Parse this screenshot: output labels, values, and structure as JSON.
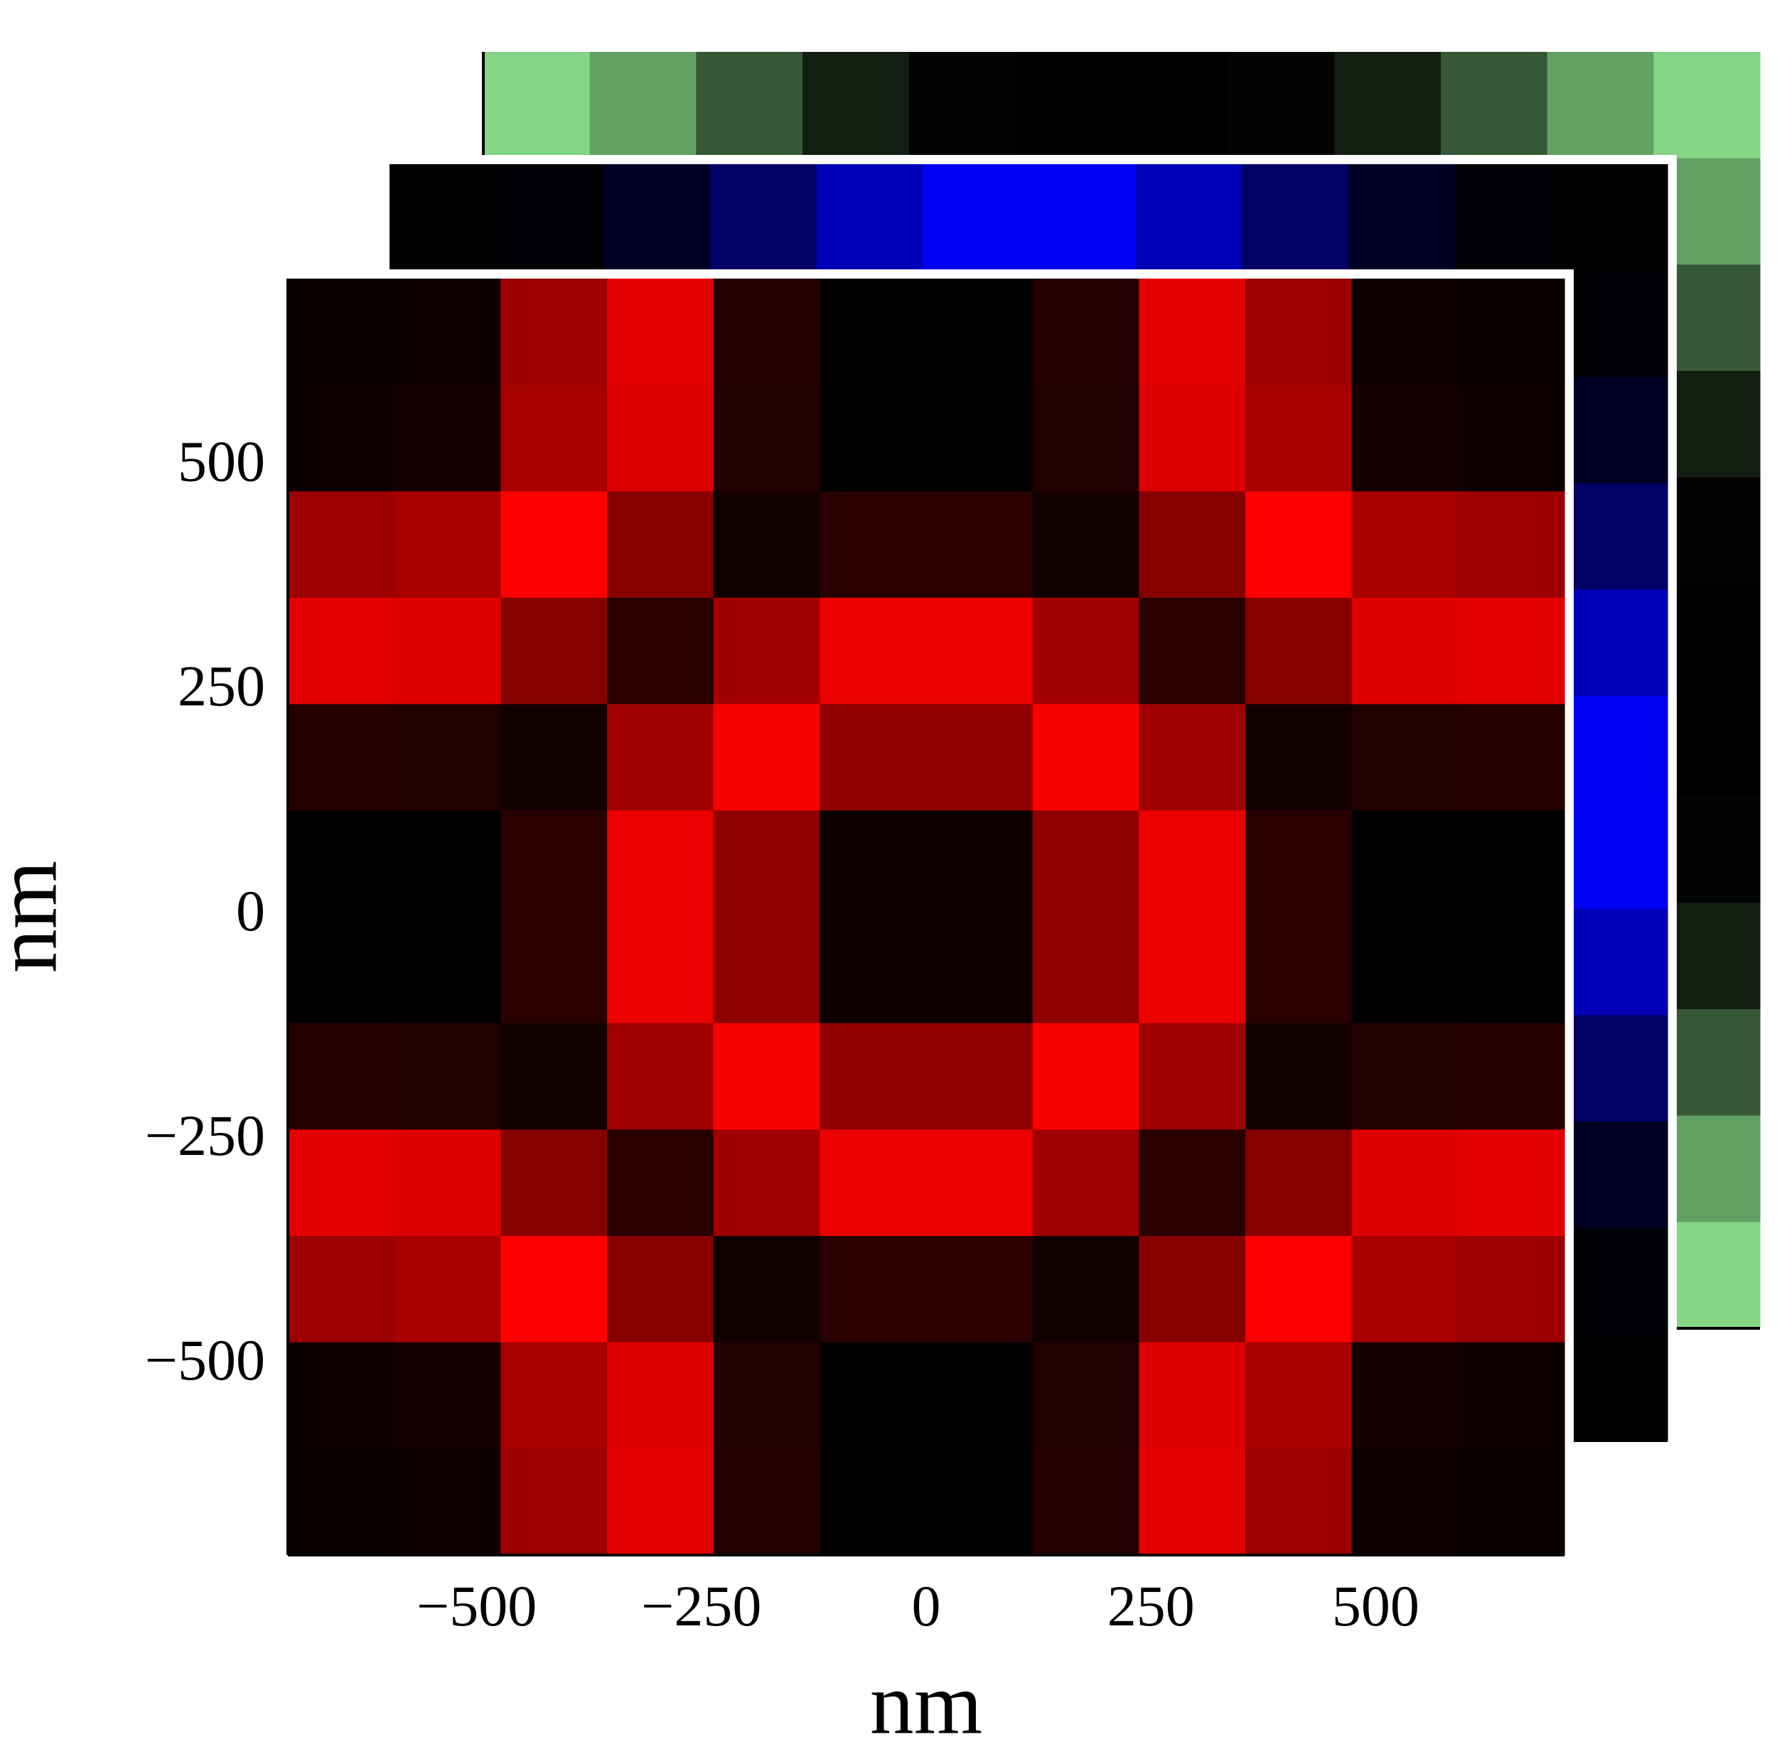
{
  "chart_data": {
    "type": "heatmap",
    "xlabel": "nm",
    "ylabel": "nm",
    "xlim": [
      -710,
      710
    ],
    "ylim": [
      -710,
      710
    ],
    "xticks": [
      {
        "value": -500,
        "label": "−500"
      },
      {
        "value": -250,
        "label": "−250"
      },
      0,
      250,
      500
    ],
    "yticks": [
      {
        "value": -500,
        "label": "−500"
      },
      {
        "value": -250,
        "label": "−250"
      },
      0,
      250,
      500
    ],
    "layers": [
      {
        "color": "#8fe88f",
        "values": [
          [
            0.92,
            0.69,
            0.38,
            0.13,
            0.02,
            0,
            0,
            0.02,
            0.13,
            0.38,
            0.69,
            0.92
          ],
          [
            0.69,
            0.52,
            0.29,
            0.1,
            0.01,
            0,
            0,
            0.01,
            0.1,
            0.29,
            0.52,
            0.69
          ],
          [
            0.38,
            0.29,
            0.16,
            0.06,
            0.01,
            0,
            0,
            0.01,
            0.06,
            0.16,
            0.29,
            0.38
          ],
          [
            0.13,
            0.1,
            0.06,
            0.02,
            0,
            0,
            0,
            0,
            0.02,
            0.06,
            0.1,
            0.13
          ],
          [
            0.02,
            0.01,
            0.01,
            0,
            0,
            0,
            0,
            0,
            0,
            0.01,
            0.01,
            0.02
          ],
          [
            0,
            0,
            0,
            0,
            0,
            0,
            0,
            0,
            0,
            0,
            0,
            0
          ],
          [
            0,
            0,
            0,
            0,
            0,
            0,
            0,
            0,
            0,
            0,
            0,
            0
          ],
          [
            0.02,
            0.01,
            0.01,
            0,
            0,
            0,
            0,
            0,
            0,
            0.01,
            0.01,
            0.02
          ],
          [
            0.13,
            0.1,
            0.06,
            0.02,
            0,
            0,
            0,
            0,
            0.02,
            0.06,
            0.1,
            0.13
          ],
          [
            0.38,
            0.29,
            0.16,
            0.06,
            0.01,
            0,
            0,
            0.01,
            0.06,
            0.16,
            0.29,
            0.38
          ],
          [
            0.69,
            0.52,
            0.29,
            0.1,
            0.01,
            0,
            0,
            0.01,
            0.1,
            0.29,
            0.52,
            0.69
          ],
          [
            0.92,
            0.69,
            0.38,
            0.13,
            0.02,
            0,
            0,
            0.02,
            0.13,
            0.38,
            0.69,
            0.92
          ]
        ]
      },
      {
        "color": "#0000ff",
        "values": [
          [
            0,
            0.02,
            0.14,
            0.4,
            0.72,
            0.96,
            0.96,
            0.72,
            0.4,
            0.14,
            0.02,
            0
          ],
          [
            0.02,
            0.02,
            0.14,
            0.4,
            0.72,
            0.96,
            0.96,
            0.72,
            0.4,
            0.14,
            0.02,
            0.02
          ],
          [
            0.14,
            0.14,
            0.14,
            0.4,
            0.72,
            0.96,
            0.96,
            0.72,
            0.4,
            0.14,
            0.14,
            0.14
          ],
          [
            0.4,
            0.4,
            0.4,
            0.4,
            0.72,
            0.96,
            0.96,
            0.72,
            0.4,
            0.4,
            0.4,
            0.4
          ],
          [
            0.72,
            0.72,
            0.72,
            0.72,
            0.72,
            0.96,
            0.96,
            0.72,
            0.72,
            0.72,
            0.72,
            0.72
          ],
          [
            0.96,
            0.96,
            0.96,
            0.96,
            0.96,
            0.96,
            0.96,
            0.96,
            0.96,
            0.96,
            0.96,
            0.96
          ],
          [
            0.96,
            0.96,
            0.96,
            0.96,
            0.96,
            0.96,
            0.96,
            0.96,
            0.96,
            0.96,
            0.96,
            0.96
          ],
          [
            0.72,
            0.72,
            0.72,
            0.72,
            0.72,
            0.96,
            0.96,
            0.72,
            0.72,
            0.72,
            0.72,
            0.72
          ],
          [
            0.4,
            0.4,
            0.4,
            0.4,
            0.72,
            0.96,
            0.96,
            0.72,
            0.4,
            0.4,
            0.4,
            0.4
          ],
          [
            0.14,
            0.14,
            0.14,
            0.4,
            0.72,
            0.96,
            0.96,
            0.72,
            0.4,
            0.14,
            0.14,
            0.14
          ],
          [
            0.02,
            0.02,
            0.14,
            0.4,
            0.72,
            0.96,
            0.96,
            0.72,
            0.4,
            0.14,
            0.02,
            0.02
          ],
          [
            0,
            0.02,
            0.14,
            0.4,
            0.72,
            0.96,
            0.96,
            0.72,
            0.4,
            0.14,
            0.02,
            0
          ]
        ]
      },
      {
        "color": "#ff0000",
        "values": [
          [
            0.04,
            0.06,
            0.61,
            0.89,
            0.14,
            0,
            0,
            0.14,
            0.89,
            0.61,
            0.06,
            0.04
          ],
          [
            0.06,
            0.08,
            0.65,
            0.87,
            0.13,
            0,
            0,
            0.13,
            0.87,
            0.65,
            0.08,
            0.06
          ],
          [
            0.61,
            0.65,
            0.99,
            0.53,
            0.07,
            0.16,
            0.16,
            0.07,
            0.53,
            0.99,
            0.65,
            0.61
          ],
          [
            0.89,
            0.87,
            0.53,
            0.16,
            0.63,
            0.92,
            0.92,
            0.63,
            0.16,
            0.53,
            0.87,
            0.89
          ],
          [
            0.14,
            0.13,
            0.07,
            0.63,
            0.97,
            0.57,
            0.57,
            0.97,
            0.63,
            0.07,
            0.13,
            0.14
          ],
          [
            0,
            0,
            0.16,
            0.92,
            0.57,
            0.06,
            0.06,
            0.57,
            0.92,
            0.16,
            0,
            0
          ],
          [
            0,
            0,
            0.16,
            0.92,
            0.57,
            0.06,
            0.06,
            0.57,
            0.92,
            0.16,
            0,
            0
          ],
          [
            0.14,
            0.13,
            0.07,
            0.63,
            0.97,
            0.57,
            0.57,
            0.97,
            0.63,
            0.07,
            0.13,
            0.14
          ],
          [
            0.89,
            0.87,
            0.53,
            0.16,
            0.63,
            0.92,
            0.92,
            0.63,
            0.16,
            0.53,
            0.87,
            0.89
          ],
          [
            0.61,
            0.65,
            0.99,
            0.53,
            0.07,
            0.16,
            0.16,
            0.07,
            0.53,
            0.99,
            0.65,
            0.61
          ],
          [
            0.06,
            0.08,
            0.65,
            0.87,
            0.13,
            0,
            0,
            0.13,
            0.87,
            0.65,
            0.08,
            0.06
          ],
          [
            0.04,
            0.06,
            0.61,
            0.89,
            0.14,
            0,
            0,
            0.14,
            0.89,
            0.61,
            0.06,
            0.04
          ]
        ]
      }
    ]
  }
}
